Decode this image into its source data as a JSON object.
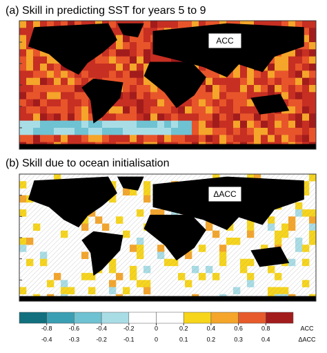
{
  "panels": [
    {
      "title": "(a) Skill in predicting SST for years 5 to 9",
      "label": "ACC"
    },
    {
      "title": "(b) Skill due to ocean initialisation",
      "label": "ΔACC"
    }
  ],
  "colorbar": {
    "colors": [
      "#12707e",
      "#3b9fb3",
      "#6fc2d1",
      "#a9dde6",
      "#ffffff",
      "#ffffff",
      "#f7d51b",
      "#f4a52a",
      "#e75a2b",
      "#a31c1c"
    ],
    "lim": [
      -1,
      1
    ],
    "acc_ticks": [
      -0.8,
      -0.6,
      -0.4,
      -0.2,
      0,
      0.2,
      0.4,
      0.6,
      0.8
    ],
    "acc_label": "ACC",
    "dacc_lim": [
      -0.5,
      0.5
    ],
    "dacc_ticks": [
      -0.4,
      -0.3,
      -0.2,
      -0.1,
      0,
      0.1,
      0.2,
      0.3,
      0.4
    ],
    "dacc_label": "ΔACC"
  }
}
